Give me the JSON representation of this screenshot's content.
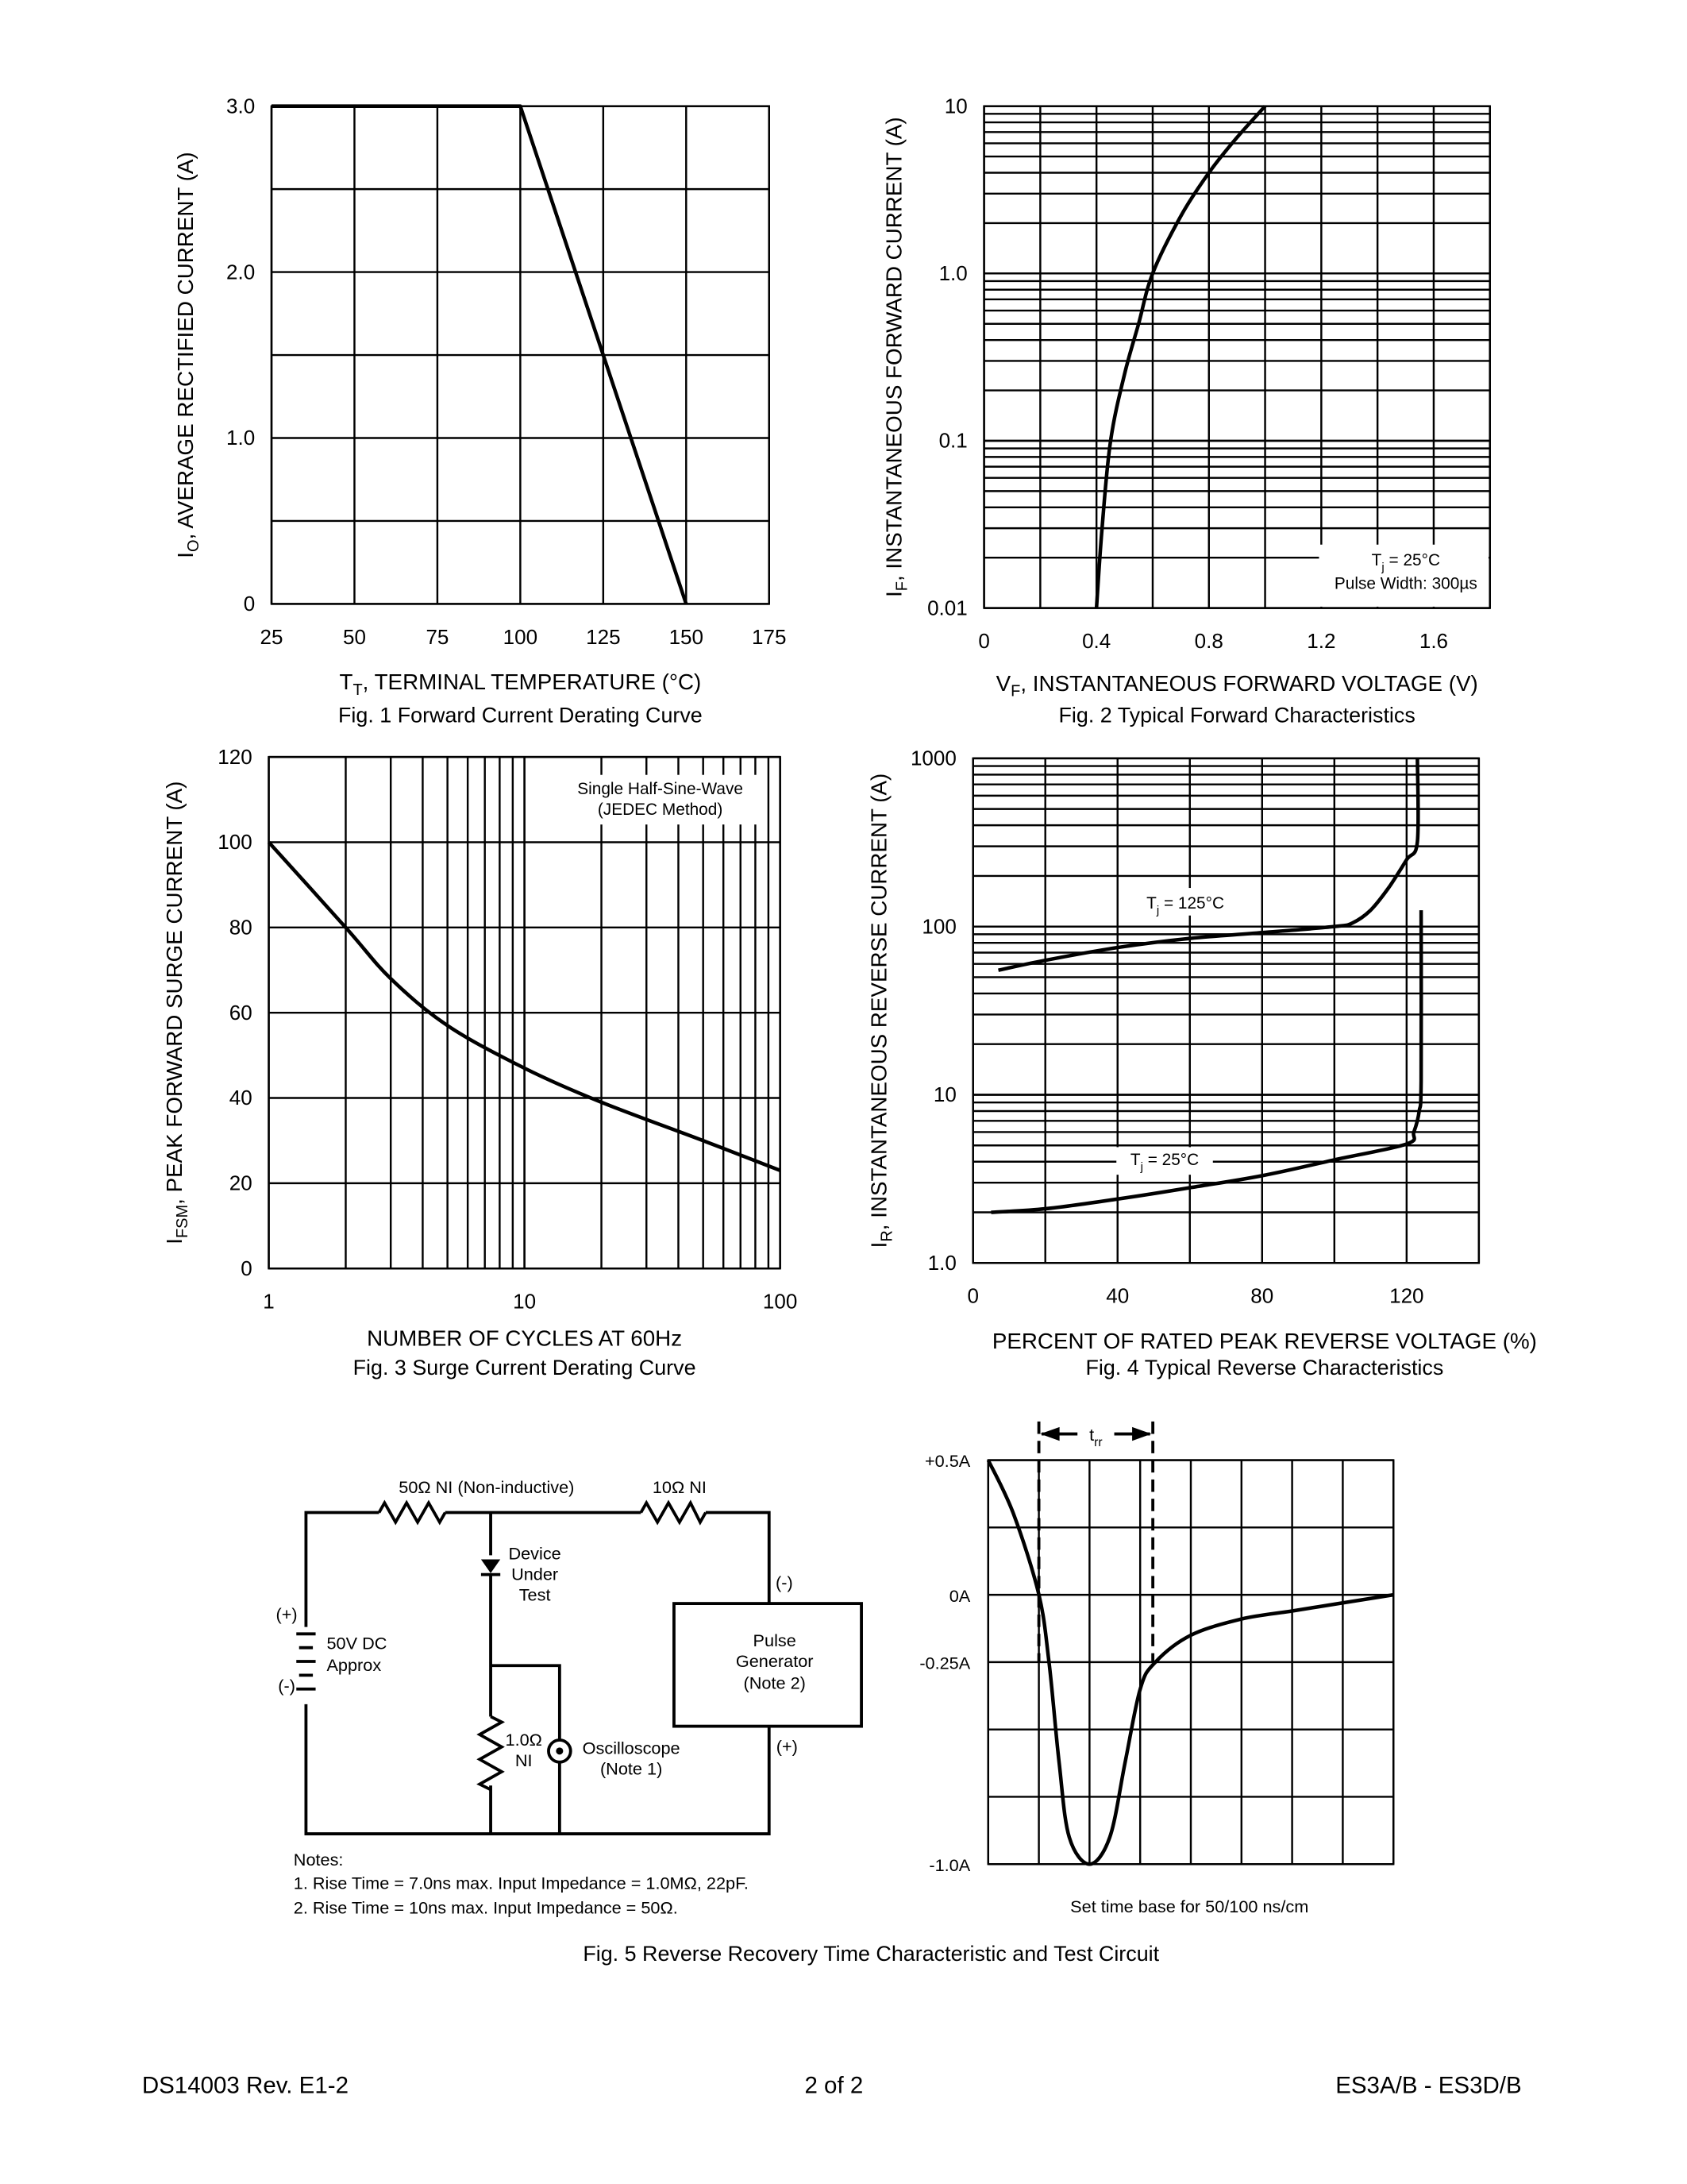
{
  "chart_data": [
    {
      "type": "line",
      "title": "Fig. 1  Forward Current Derating Curve",
      "xlabel": [
        {
          "t": "T"
        },
        {
          "t": "T",
          "sub": true
        },
        {
          "t": ", TERMINAL TEMPERATURE (°C)"
        }
      ],
      "ylabel": [
        {
          "t": "I"
        },
        {
          "t": "O",
          "sub": true
        },
        {
          "t": ", AVERAGE RECTIFIED CURRENT (A)"
        }
      ],
      "xscale": "linear",
      "yscale": "linear",
      "xlim": [
        25,
        175
      ],
      "ylim": [
        0,
        3
      ],
      "x_grid_step": 25,
      "y_grid_step": 0.5,
      "grid": true,
      "xticks": [
        {
          "value": 25,
          "label": "25"
        },
        {
          "value": 50,
          "label": "50"
        },
        {
          "value": 75,
          "label": "75"
        },
        {
          "value": 100,
          "label": "100"
        },
        {
          "value": 125,
          "label": "125"
        },
        {
          "value": 150,
          "label": "150"
        },
        {
          "value": 175,
          "label": "175"
        }
      ],
      "yticks": [
        {
          "value": 0,
          "label": "0"
        },
        {
          "value": 1,
          "label": "1.0"
        },
        {
          "value": 2,
          "label": "2.0"
        },
        {
          "value": 3,
          "label": "3.0"
        }
      ],
      "series": [
        {
          "x": [
            25,
            100,
            150
          ],
          "y": [
            3.0,
            3.0,
            0
          ]
        }
      ]
    },
    {
      "type": "line",
      "title": "Fig. 2  Typical Forward Characteristics",
      "xlabel": [
        {
          "t": "V"
        },
        {
          "t": "F",
          "sub": true
        },
        {
          "t": ", INSTANTANEOUS FORWARD VOLTAGE (V)"
        }
      ],
      "ylabel": [
        {
          "t": "I"
        },
        {
          "t": "F",
          "sub": true
        },
        {
          "t": ", INSTANTANEOUS FORWARD CURRENT (A)"
        }
      ],
      "xscale": "linear",
      "yscale": "log",
      "xlim": [
        0,
        1.8
      ],
      "ylim": [
        0.01,
        10
      ],
      "x_grid_step": 0.2,
      "grid": true,
      "xticks": [
        {
          "value": 0,
          "label": "0"
        },
        {
          "value": 0.4,
          "label": "0.4"
        },
        {
          "value": 0.8,
          "label": "0.8"
        },
        {
          "value": 1.2,
          "label": "1.2"
        },
        {
          "value": 1.6,
          "label": "1.6"
        }
      ],
      "yticks": [
        {
          "value": 0.01,
          "label": "0.01"
        },
        {
          "value": 0.1,
          "label": "0.1"
        },
        {
          "value": 1,
          "label": "1.0"
        },
        {
          "value": 10,
          "label": "10"
        }
      ],
      "annotation": [
        [
          {
            "t": "T"
          },
          {
            "t": "j",
            "sub": true
          },
          {
            "t": " = 25°C"
          }
        ],
        [
          {
            "t": "Pulse Width: 300µs"
          }
        ]
      ],
      "series": [
        {
          "x": [
            0.4,
            0.42,
            0.45,
            0.5,
            0.55,
            0.6,
            0.7,
            0.8,
            0.9,
            1.0
          ],
          "y": [
            0.01,
            0.03,
            0.1,
            0.25,
            0.5,
            1.0,
            2.2,
            4.0,
            6.5,
            10
          ]
        }
      ]
    },
    {
      "type": "line",
      "title": "Fig. 3  Surge Current Derating Curve",
      "xlabel": [
        {
          "t": "NUMBER OF CYCLES AT 60Hz"
        }
      ],
      "ylabel": [
        {
          "t": "I"
        },
        {
          "t": "FSM",
          "sub": true
        },
        {
          "t": ", PEAK FORWARD SURGE CURRENT (A)"
        }
      ],
      "xscale": "log",
      "yscale": "linear",
      "xlim": [
        1,
        100
      ],
      "ylim": [
        0,
        120
      ],
      "y_grid_step": 20,
      "grid": true,
      "xticks": [
        {
          "value": 1,
          "label": "1"
        },
        {
          "value": 10,
          "label": "10"
        },
        {
          "value": 100,
          "label": "100"
        }
      ],
      "yticks": [
        {
          "value": 0,
          "label": "0"
        },
        {
          "value": 20,
          "label": "20"
        },
        {
          "value": 40,
          "label": "40"
        },
        {
          "value": 60,
          "label": "60"
        },
        {
          "value": 80,
          "label": "80"
        },
        {
          "value": 100,
          "label": "100"
        },
        {
          "value": 120,
          "label": "120"
        }
      ],
      "annotation": [
        [
          {
            "t": "Single Half-Sine-Wave"
          }
        ],
        [
          {
            "t": "(JEDEC Method)"
          }
        ]
      ],
      "series": [
        {
          "x": [
            1,
            2,
            3,
            5,
            10,
            20,
            50,
            100
          ],
          "y": [
            100,
            80,
            68,
            57,
            47,
            39,
            30,
            23
          ]
        }
      ]
    },
    {
      "type": "line",
      "title": "Fig. 4  Typical Reverse Characteristics",
      "xlabel": [
        {
          "t": "PERCENT OF RATED PEAK REVERSE VOLTAGE (%)"
        }
      ],
      "ylabel": [
        {
          "t": "I"
        },
        {
          "t": "R",
          "sub": true
        },
        {
          "t": ", INSTANTANEOUS REVERSE CURRENT (A)"
        }
      ],
      "xscale": "linear",
      "yscale": "log",
      "xlim": [
        0,
        140
      ],
      "ylim": [
        1,
        1000
      ],
      "x_grid_step": 20,
      "grid": true,
      "xticks": [
        {
          "value": 0,
          "label": "0"
        },
        {
          "value": 40,
          "label": "40"
        },
        {
          "value": 80,
          "label": "80"
        },
        {
          "value": 120,
          "label": "120"
        }
      ],
      "yticks": [
        {
          "value": 1,
          "label": "1.0"
        },
        {
          "value": 10,
          "label": "10"
        },
        {
          "value": 100,
          "label": "100"
        },
        {
          "value": 1000,
          "label": "1000"
        }
      ],
      "series": [
        {
          "name": [
            {
              "t": "T"
            },
            {
              "t": "j",
              "sub": true
            },
            {
              "t": " = 125°C"
            }
          ],
          "x": [
            7,
            20,
            40,
            60,
            80,
            100,
            105,
            110,
            115,
            120,
            123,
            123
          ],
          "y": [
            55,
            63,
            75,
            85,
            92,
            100,
            105,
            125,
            170,
            250,
            320,
            1000
          ]
        },
        {
          "name": [
            {
              "t": "T"
            },
            {
              "t": "j",
              "sub": true
            },
            {
              "t": " = 25°C"
            }
          ],
          "x": [
            5,
            20,
            40,
            60,
            80,
            100,
            120,
            122,
            123.5,
            124,
            124
          ],
          "y": [
            2.0,
            2.1,
            2.4,
            2.8,
            3.3,
            4.1,
            5.1,
            6.0,
            8.0,
            12,
            125
          ]
        }
      ]
    },
    {
      "type": "line",
      "note": "Set time base for 50/100 ns/cm",
      "xscale": "linear",
      "yscale": "linear",
      "xlim": [
        0,
        8
      ],
      "ylim": [
        -1.0,
        0.5
      ],
      "x_grid_step": 1,
      "y_grid_step": 0.25,
      "grid": true,
      "yticks": [
        {
          "value": 0.5,
          "label": "+0.5A"
        },
        {
          "value": 0,
          "label": "0A"
        },
        {
          "value": -0.25,
          "label": "-0.25A"
        },
        {
          "value": -1.0,
          "label": "-1.0A"
        }
      ],
      "trr": {
        "label": [
          {
            "t": "t"
          },
          {
            "t": "rr",
            "sub": true
          }
        ],
        "start": 1,
        "end": 3.25
      },
      "series": [
        {
          "x": [
            0,
            0.5,
            1,
            1.2,
            1.4,
            1.6,
            2,
            2.4,
            2.7,
            3,
            3.3,
            4,
            5,
            6,
            7,
            8
          ],
          "y": [
            0.5,
            0.3,
            0,
            -0.25,
            -0.625,
            -0.9,
            -1.0,
            -0.9,
            -0.625,
            -0.35,
            -0.25,
            -0.15,
            -0.09,
            -0.06,
            -0.03,
            0
          ]
        }
      ]
    }
  ],
  "circuit": {
    "r50_label": "50Ω NI (Non-inductive)",
    "r10_label": "10Ω NI",
    "dut_label": [
      "Device",
      "Under",
      "Test"
    ],
    "battery_plus": "(+)",
    "battery_minus": "(-)",
    "battery_label": [
      "50V DC",
      "Approx"
    ],
    "pulse_gen_label": [
      "Pulse",
      "Generator",
      "(Note 2)"
    ],
    "pulse_gen_minus": "(-)",
    "pulse_gen_plus": "(+)",
    "r1_label": [
      "1.0Ω",
      "NI"
    ],
    "scope_label": [
      "Oscilloscope",
      "(Note 1)"
    ],
    "notes_title": "Notes:",
    "notes": [
      "1. Rise Time = 7.0ns max. Input Impedance = 1.0MΩ, 22pF.",
      "2. Rise Time = 10ns max. Input Impedance = 50Ω."
    ]
  },
  "fig5_caption": "Fig. 5  Reverse Recovery Time Characteristic and Test Circuit",
  "footer": {
    "left": "DS14003 Rev. E1-2",
    "center": "2 of 2",
    "right": "ES3A/B - ES3D/B"
  }
}
